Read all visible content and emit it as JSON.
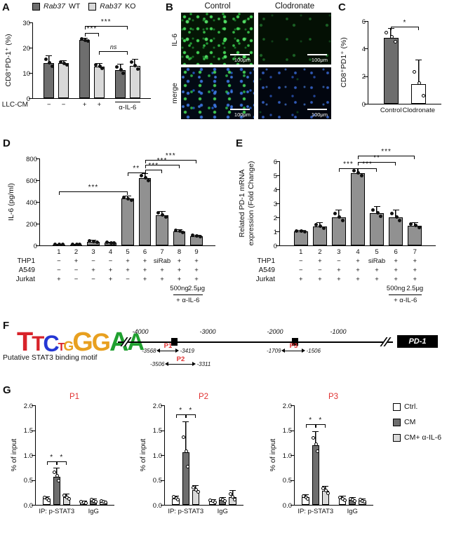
{
  "panels": {
    "a": "A",
    "b": "B",
    "c": "C",
    "d": "D",
    "e": "E",
    "f": "F",
    "g": "G"
  },
  "legendA": {
    "items": [
      {
        "gene": "Rab37",
        "suffix": "WT",
        "color": "#6e6e6e"
      },
      {
        "gene": "Rab37",
        "suffix": "KO",
        "color": "#d9d9d9"
      }
    ]
  },
  "panelB": {
    "col1": "Control",
    "col2": "Clodronate",
    "row1": "IL-6",
    "row2": "merge",
    "scale": "100μm"
  },
  "panelF": {
    "motif_caption": "Putative STAT3 binding motif",
    "logo": [
      {
        "ch": "T",
        "c": "#d8232a",
        "h": 1.0
      },
      {
        "ch": "T",
        "c": "#d8232a",
        "h": 0.78
      },
      {
        "ch": "C",
        "c": "#2437d4",
        "h": 0.85
      },
      {
        "ch": "T",
        "c": "#d8232a",
        "h": 0.42
      },
      {
        "ch": "G",
        "c": "#e8a020",
        "h": 0.5
      },
      {
        "ch": "G",
        "c": "#e8a020",
        "h": 1.0
      },
      {
        "ch": "G",
        "c": "#e8a020",
        "h": 0.92
      },
      {
        "ch": "A",
        "c": "#20a030",
        "h": 1.0
      },
      {
        "ch": "A",
        "c": "#20a030",
        "h": 0.9
      }
    ],
    "ticks": [
      "-4000",
      "-3000",
      "-2000",
      "-1000"
    ],
    "gene": "PD-1",
    "p1": {
      "label": "P1",
      "from": "-3568",
      "to": "-3419"
    },
    "p2": {
      "label": "P2",
      "from": "-3506",
      "to": "-3311"
    },
    "p3": {
      "label": "P3",
      "from": "-1709",
      "to": "-1506"
    }
  },
  "legendG": {
    "items": [
      {
        "label": "Ctrl.",
        "color": "#ffffff"
      },
      {
        "label": "CM",
        "color": "#6e6e6e"
      },
      {
        "label": "CM+ α-IL-6",
        "color": "#d9d9d9"
      }
    ]
  },
  "chart_data": {
    "panelA": {
      "type": "bar",
      "ylabel": "CD8⁺PD-1⁺ (%)",
      "ylim": 30,
      "yticks": [
        0,
        10,
        20,
        30
      ],
      "dot": "filled",
      "bars": [
        {
          "v": 14,
          "err": 3,
          "fill": "#6e6e6e"
        },
        {
          "v": 13.8,
          "err": 1.2,
          "fill": "#d9d9d9"
        },
        {
          "v": 23,
          "err": 1,
          "fill": "#6e6e6e"
        },
        {
          "v": 12.5,
          "err": 1.5,
          "fill": "#d9d9d9"
        },
        {
          "v": 11,
          "err": 2.5,
          "fill": "#6e6e6e"
        },
        {
          "v": 12.8,
          "err": 2.8,
          "fill": "#d9d9d9"
        }
      ],
      "gaps": [
        0,
        0,
        0.45,
        0,
        0.45,
        0
      ],
      "sig": [
        {
          "a": 2,
          "b": 3,
          "t": "***",
          "y": 25.8
        },
        {
          "a": 2,
          "b": 4.5,
          "t": "***",
          "y": 28.6
        },
        {
          "a": 3,
          "b": 4.5,
          "t": "ns",
          "y": 18.5
        }
      ],
      "xrows": [
        {
          "label": "LLC-CM",
          "cells": [
            "−",
            "−",
            "+",
            "+",
            "",
            ""
          ]
        }
      ],
      "xgroups": [
        {
          "a": 4,
          "b": 5,
          "text": "α-IL-6",
          "row": 0
        }
      ]
    },
    "panelC": {
      "type": "bar",
      "ylabel": "CD8⁺PD1⁺ (%)",
      "ylim": 6,
      "yticks": [
        0,
        2,
        4,
        6
      ],
      "dot": "open",
      "bars": [
        {
          "v": 4.8,
          "err": 0.7,
          "fill": "#6e6e6e"
        },
        {
          "v": 1.4,
          "err": 1.8,
          "fill": "#ffffff"
        }
      ],
      "gaps": [
        0,
        0.35
      ],
      "sig": [
        {
          "a": 0,
          "b": 1,
          "t": "*",
          "y": 5.6
        }
      ],
      "xrows": [
        {
          "label": "",
          "cells": [
            "Control",
            "Clodronate"
          ]
        }
      ]
    },
    "panelD": {
      "type": "bar",
      "ylabel": "IL-6 (pg/ml)",
      "ylim": 800,
      "yticks": [
        0,
        200,
        400,
        600,
        800
      ],
      "dot": "filled",
      "bars": [
        {
          "v": 8,
          "err": 4,
          "fill": "#919191"
        },
        {
          "v": 8,
          "err": 4,
          "fill": "#919191"
        },
        {
          "v": 35,
          "err": 18,
          "fill": "#919191"
        },
        {
          "v": 25,
          "err": 10,
          "fill": "#919191"
        },
        {
          "v": 430,
          "err": 25,
          "fill": "#919191"
        },
        {
          "v": 620,
          "err": 45,
          "fill": "#919191"
        },
        {
          "v": 280,
          "err": 35,
          "fill": "#919191"
        },
        {
          "v": 130,
          "err": 20,
          "fill": "#919191"
        },
        {
          "v": 85,
          "err": 15,
          "fill": "#919191"
        }
      ],
      "sig": [
        {
          "a": 0,
          "b": 4,
          "t": "***",
          "y": 495
        },
        {
          "a": 4,
          "b": 5,
          "t": "**",
          "y": 672
        },
        {
          "a": 5,
          "b": 6,
          "t": "***",
          "y": 700
        },
        {
          "a": 5,
          "b": 7,
          "t": "***",
          "y": 742
        },
        {
          "a": 5,
          "b": 8,
          "t": "***",
          "y": 784
        }
      ],
      "xrows": [
        {
          "label": "",
          "cells": [
            "1",
            "2",
            "3",
            "4",
            "5",
            "6",
            "7",
            "8",
            "9"
          ]
        },
        {
          "label": "THP1",
          "cells": [
            "−",
            "+",
            "−",
            "−",
            "+",
            "+",
            "siRab",
            "+",
            "+"
          ]
        },
        {
          "label": "A549",
          "cells": [
            "−",
            "−",
            "+",
            "+",
            "+",
            "+",
            "+",
            "+",
            "+"
          ]
        },
        {
          "label": "Jurkat",
          "cells": [
            "+",
            "−",
            "−",
            "+",
            "−",
            "+",
            "+",
            "+",
            "+"
          ]
        },
        {
          "label": "",
          "cells": [
            "",
            "",
            "",
            "",
            "",
            "",
            "",
            "500ng",
            "2.5μg"
          ]
        }
      ],
      "xgroups": [
        {
          "a": 7,
          "b": 8,
          "text": "+ α-IL-6",
          "row": 5
        }
      ]
    },
    "panelE": {
      "type": "bar",
      "ylabel1": "Related PD-1 mRNA",
      "ylabel2": "expression (Fold Change)",
      "ylim": 6,
      "yticks": [
        0,
        1,
        2,
        3,
        4,
        5,
        6
      ],
      "dot": "filled",
      "bars": [
        {
          "v": 1.0,
          "err": 0.08,
          "fill": "#919191"
        },
        {
          "v": 1.35,
          "err": 0.3,
          "fill": "#919191"
        },
        {
          "v": 2.0,
          "err": 0.55,
          "fill": "#919191"
        },
        {
          "v": 5.15,
          "err": 0.35,
          "fill": "#919191"
        },
        {
          "v": 2.3,
          "err": 0.5,
          "fill": "#919191"
        },
        {
          "v": 2.0,
          "err": 0.55,
          "fill": "#919191"
        },
        {
          "v": 1.4,
          "err": 0.25,
          "fill": "#919191"
        }
      ],
      "sig": [
        {
          "a": 2,
          "b": 3,
          "t": "***",
          "y": 5.5
        },
        {
          "a": 3,
          "b": 4,
          "t": "***",
          "y": 5.5
        },
        {
          "a": 3,
          "b": 5,
          "t": "**",
          "y": 5.95
        },
        {
          "a": 3,
          "b": 6,
          "t": "***",
          "y": 6.4
        }
      ],
      "xrows": [
        {
          "label": "",
          "cells": [
            "1",
            "2",
            "3",
            "4",
            "5",
            "6",
            "7"
          ]
        },
        {
          "label": "THP1",
          "cells": [
            "−",
            "+",
            "−",
            "+",
            "siRab",
            "+",
            "+"
          ]
        },
        {
          "label": "A549",
          "cells": [
            "−",
            "−",
            "+",
            "+",
            "+",
            "+",
            "+"
          ]
        },
        {
          "label": "Jurkat",
          "cells": [
            "+",
            "+",
            "+",
            "+",
            "+",
            "+",
            "+"
          ]
        },
        {
          "label": "",
          "cells": [
            "",
            "",
            "",
            "",
            "",
            "500ng",
            "2.5μg"
          ]
        }
      ],
      "xgroups": [
        {
          "a": 5,
          "b": 6,
          "text": "+ α-IL-6",
          "row": 5
        }
      ]
    },
    "g_p1": {
      "type": "bar",
      "title": "P1",
      "ylabel": "% of input",
      "ylim": 2,
      "yticks": [
        0,
        0.5,
        1,
        1.5,
        2
      ],
      "ytlabels": [
        "0.0",
        "0.5",
        "1.0",
        "1.5",
        "2.0"
      ],
      "dot": "open",
      "bars": [
        {
          "v": 0.12,
          "err": 0.05,
          "fill": "#ffffff"
        },
        {
          "v": 0.57,
          "err": 0.18,
          "fill": "#6e6e6e"
        },
        {
          "v": 0.15,
          "err": 0.07,
          "fill": "#d9d9d9"
        },
        {
          "v": 0.05,
          "err": 0.03,
          "fill": "#ffffff"
        },
        {
          "v": 0.08,
          "err": 0.04,
          "fill": "#6e6e6e"
        },
        {
          "v": 0.06,
          "err": 0.03,
          "fill": "#d9d9d9"
        }
      ],
      "gaps": [
        0,
        0,
        0,
        0.7,
        0,
        0
      ],
      "sig": [
        {
          "a": 0,
          "b": 1,
          "t": "*",
          "y": 0.88
        },
        {
          "a": 1,
          "b": 2,
          "t": "*",
          "y": 0.88
        }
      ],
      "xspans": [
        {
          "a": 0,
          "b": 2,
          "text": "IP: p-STAT3"
        },
        {
          "a": 3,
          "b": 5,
          "text": "IgG"
        }
      ]
    },
    "g_p2": {
      "type": "bar",
      "title": "P2",
      "ylabel": "% of input",
      "ylim": 2,
      "yticks": [
        0,
        0.5,
        1,
        1.5,
        2
      ],
      "ytlabels": [
        "0.0",
        "0.5",
        "1.0",
        "1.5",
        "2.0"
      ],
      "dot": "open",
      "bars": [
        {
          "v": 0.13,
          "err": 0.05,
          "fill": "#ffffff"
        },
        {
          "v": 1.05,
          "err": 0.62,
          "fill": "#6e6e6e"
        },
        {
          "v": 0.3,
          "err": 0.1,
          "fill": "#d9d9d9"
        },
        {
          "v": 0.07,
          "err": 0.04,
          "fill": "#ffffff"
        },
        {
          "v": 0.1,
          "err": 0.05,
          "fill": "#6e6e6e"
        },
        {
          "v": 0.16,
          "err": 0.13,
          "fill": "#d9d9d9"
        }
      ],
      "gaps": [
        0,
        0,
        0,
        0.7,
        0,
        0
      ],
      "sig": [
        {
          "a": 0,
          "b": 1,
          "t": "*",
          "y": 1.82
        },
        {
          "a": 1,
          "b": 2,
          "t": "*",
          "y": 1.82
        }
      ],
      "xspans": [
        {
          "a": 0,
          "b": 2,
          "text": "IP: p-STAT3"
        },
        {
          "a": 3,
          "b": 5,
          "text": "IgG"
        }
      ]
    },
    "g_p3": {
      "type": "bar",
      "title": "P3",
      "ylabel": "% of input",
      "ylim": 2,
      "yticks": [
        0,
        0.5,
        1,
        1.5,
        2
      ],
      "ytlabels": [
        "0.0",
        "0.5",
        "1.0",
        "1.5",
        "2.0"
      ],
      "dot": "open",
      "bars": [
        {
          "v": 0.15,
          "err": 0.06,
          "fill": "#ffffff"
        },
        {
          "v": 1.2,
          "err": 0.28,
          "fill": "#6e6e6e"
        },
        {
          "v": 0.28,
          "err": 0.1,
          "fill": "#d9d9d9"
        },
        {
          "v": 0.12,
          "err": 0.06,
          "fill": "#ffffff"
        },
        {
          "v": 0.1,
          "err": 0.05,
          "fill": "#6e6e6e"
        },
        {
          "v": 0.08,
          "err": 0.04,
          "fill": "#d9d9d9"
        }
      ],
      "gaps": [
        0,
        0,
        0,
        0.7,
        0,
        0
      ],
      "sig": [
        {
          "a": 0,
          "b": 1,
          "t": "*",
          "y": 1.62
        },
        {
          "a": 1,
          "b": 2,
          "t": "*",
          "y": 1.62
        }
      ],
      "xspans": [
        {
          "a": 0,
          "b": 2,
          "text": "IP: p-STAT3"
        },
        {
          "a": 3,
          "b": 5,
          "text": "IgG"
        }
      ]
    }
  }
}
